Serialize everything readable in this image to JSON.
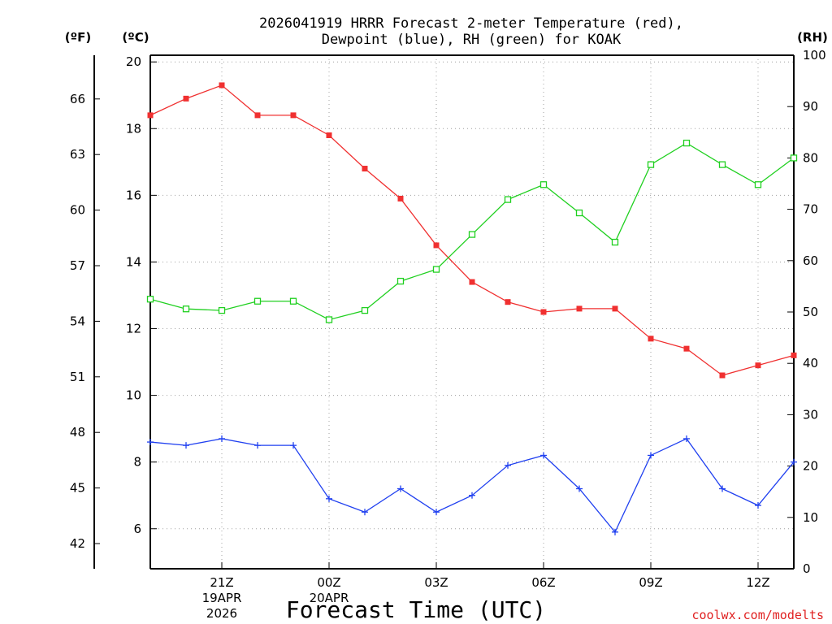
{
  "chart_data": {
    "type": "line",
    "title_lines": [
      "2026041919 HRRR Forecast 2-meter Temperature (red),",
      "Dewpoint (blue), RH (green) for KOAK"
    ],
    "xlabel": "Forecast Time (UTC)",
    "credit": "coolwx.com/modelts",
    "units": {
      "fahrenheit": "(ºF)",
      "celsius": "(ºC)",
      "rh": "(RH)"
    },
    "x_range": [
      0,
      18
    ],
    "x": [
      0,
      1,
      2,
      3,
      4,
      5,
      6,
      7,
      8,
      9,
      10,
      11,
      12,
      13,
      14,
      15,
      16,
      17,
      18
    ],
    "x_ticks": [
      {
        "x": 2,
        "lines": [
          "21Z",
          "19APR",
          "2026"
        ]
      },
      {
        "x": 5,
        "lines": [
          "00Z",
          "20APR"
        ]
      },
      {
        "x": 8,
        "lines": [
          "03Z"
        ]
      },
      {
        "x": 11,
        "lines": [
          "06Z"
        ]
      },
      {
        "x": 14,
        "lines": [
          "09Z"
        ]
      },
      {
        "x": 17,
        "lines": [
          "12Z"
        ]
      }
    ],
    "celsius_axis": {
      "range": [
        4.8,
        20.2
      ],
      "ticks": [
        "20",
        "18",
        "16",
        "14",
        "12",
        "10",
        "8",
        "6"
      ],
      "tick_values": [
        20,
        18,
        16,
        14,
        12,
        10,
        8,
        6
      ]
    },
    "fahrenheit_axis": {
      "ticks": [
        "66",
        "63",
        "60",
        "57",
        "54",
        "51",
        "48",
        "45",
        "42"
      ],
      "tick_values": [
        66,
        63,
        60,
        57,
        54,
        51,
        48,
        45,
        42
      ]
    },
    "rh_axis": {
      "range": [
        0,
        100
      ],
      "ticks": [
        "100",
        "90",
        "80",
        "70",
        "60",
        "50",
        "40",
        "30",
        "20",
        "10",
        "0"
      ],
      "tick_values": [
        100,
        90,
        80,
        70,
        60,
        50,
        40,
        30,
        20,
        10,
        0
      ]
    },
    "series": [
      {
        "name": "Temperature",
        "axis": "celsius",
        "color": "#f03030",
        "marker": "filled-square",
        "values": [
          18.4,
          18.9,
          19.3,
          18.4,
          18.4,
          17.8,
          16.8,
          15.9,
          14.5,
          13.4,
          12.8,
          12.5,
          12.6,
          12.6,
          11.7,
          11.4,
          10.6,
          10.9,
          11.2
        ]
      },
      {
        "name": "Dewpoint",
        "axis": "celsius",
        "color": "#2040f0",
        "marker": "plus",
        "values": [
          8.6,
          8.5,
          8.7,
          8.5,
          8.5,
          6.9,
          6.5,
          7.2,
          6.5,
          7.0,
          7.9,
          8.2,
          7.2,
          5.9,
          8.2,
          8.7,
          7.2,
          6.7,
          8.0
        ]
      },
      {
        "name": "Relative Humidity",
        "axis": "rh",
        "color": "#20d020",
        "marker": "open-square",
        "values": [
          52.5,
          50.6,
          50.3,
          52.1,
          52.1,
          48.5,
          50.3,
          56.0,
          58.3,
          65.1,
          71.9,
          74.8,
          69.3,
          63.6,
          78.7,
          82.9,
          78.7,
          74.8,
          80.0
        ]
      }
    ]
  },
  "colors": {
    "grid": "#a0a0a0",
    "axis": "#000000",
    "credit": "#e02020"
  }
}
